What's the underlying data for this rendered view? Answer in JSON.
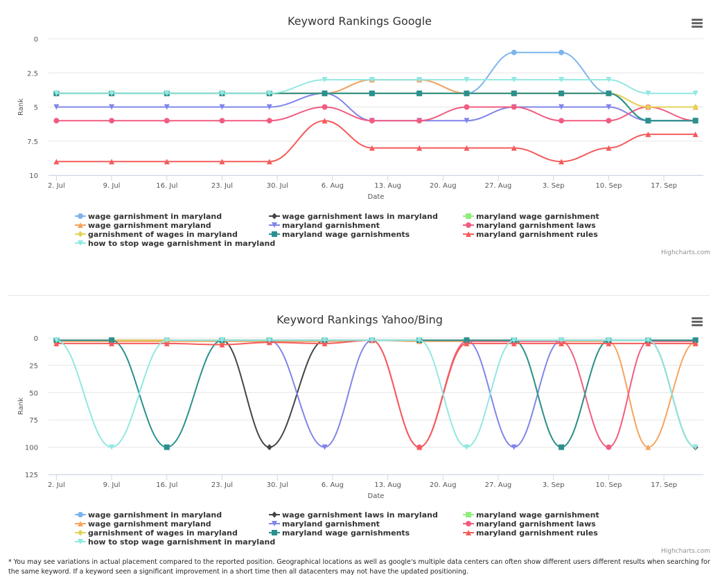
{
  "chart_data": [
    {
      "id": "google",
      "type": "line",
      "title": "Keyword Rankings Google",
      "xlabel": "Date",
      "ylabel": "Rank",
      "reversed_y": true,
      "ylim": [
        0,
        10
      ],
      "yticks": [
        0,
        2.5,
        5,
        7.5,
        10
      ],
      "yticklabels": [
        "0",
        "2.5",
        "5",
        "7.5",
        "10"
      ],
      "xticklabels": [
        "2. Jul",
        "9. Jul",
        "16. Jul",
        "23. Jul",
        "30. Jul",
        "6. Aug",
        "13. Aug",
        "20. Aug",
        "27. Aug",
        "3. Sep",
        "10. Sep",
        "17. Sep"
      ],
      "x": [
        "Jul 2",
        "Jul 9",
        "Jul 16",
        "Jul 23",
        "Jul 29",
        "Aug 5",
        "Aug 11",
        "Aug 17",
        "Aug 23",
        "Aug 29",
        "Sep 4",
        "Sep 10",
        "Sep 15",
        "Sep 21"
      ],
      "legend_position": "bottom",
      "grid": true,
      "credits": "Highcharts.com",
      "series": [
        {
          "name": "wage garnishment in maryland",
          "color": "#7cb5ec",
          "marker": "circle",
          "values": [
            4,
            4,
            4,
            4,
            4,
            4,
            3,
            3,
            4,
            1,
            1,
            4,
            6,
            6
          ]
        },
        {
          "name": "wage garnishment laws in maryland",
          "color": "#434348",
          "marker": "diamond",
          "values": [
            4,
            4,
            4,
            4,
            4,
            4,
            4,
            4,
            4,
            4,
            4,
            4,
            6,
            6
          ]
        },
        {
          "name": "maryland wage garnishment",
          "color": "#90ed7d",
          "marker": "square",
          "values": [
            4,
            4,
            4,
            4,
            4,
            4,
            4,
            4,
            4,
            4,
            4,
            4,
            6,
            6
          ]
        },
        {
          "name": "wage garnishment maryland",
          "color": "#f7a35c",
          "marker": "triangle",
          "values": [
            4,
            4,
            4,
            4,
            4,
            4,
            3,
            3,
            4,
            4,
            4,
            4,
            5,
            5
          ]
        },
        {
          "name": "maryland garnishment",
          "color": "#8085e9",
          "marker": "triangle-down",
          "values": [
            5,
            5,
            5,
            5,
            5,
            4,
            6,
            6,
            6,
            5,
            5,
            5,
            6,
            6
          ]
        },
        {
          "name": "maryland garnishment laws",
          "color": "#f15c80",
          "marker": "circle",
          "values": [
            6,
            6,
            6,
            6,
            6,
            5,
            6,
            6,
            5,
            5,
            6,
            6,
            5,
            6
          ]
        },
        {
          "name": "garnishment of wages in maryland",
          "color": "#e4d354",
          "marker": "diamond",
          "values": [
            4,
            4,
            4,
            4,
            4,
            4,
            4,
            4,
            4,
            4,
            4,
            4,
            5,
            5
          ]
        },
        {
          "name": "maryland wage garnishments",
          "color": "#2b908f",
          "marker": "square",
          "values": [
            4,
            4,
            4,
            4,
            4,
            4,
            4,
            4,
            4,
            4,
            4,
            4,
            6,
            6
          ]
        },
        {
          "name": "maryland garnishment rules",
          "color": "#f45b5b",
          "marker": "triangle",
          "values": [
            9,
            9,
            9,
            9,
            9,
            6,
            8,
            8,
            8,
            8,
            9,
            8,
            7,
            7
          ]
        },
        {
          "name": "how to stop wage garnishment in maryland",
          "color": "#91e8e1",
          "marker": "triangle-down",
          "values": [
            4,
            4,
            4,
            4,
            4,
            3,
            3,
            3,
            3,
            3,
            3,
            3,
            4,
            4
          ]
        }
      ]
    },
    {
      "id": "yahoo",
      "type": "line",
      "title": "Keyword Rankings Yahoo/Bing",
      "xlabel": "Date",
      "ylabel": "Rank",
      "reversed_y": true,
      "ylim": [
        0,
        125
      ],
      "yticks": [
        0,
        25,
        50,
        75,
        100,
        125
      ],
      "yticklabels": [
        "0",
        "25",
        "50",
        "75",
        "100",
        "125"
      ],
      "xticklabels": [
        "2. Jul",
        "9. Jul",
        "16. Jul",
        "23. Jul",
        "30. Jul",
        "6. Aug",
        "13. Aug",
        "20. Aug",
        "27. Aug",
        "3. Sep",
        "10. Sep",
        "17. Sep"
      ],
      "x": [
        "Jul 2",
        "Jul 9",
        "Jul 16",
        "Jul 23",
        "Jul 29",
        "Aug 5",
        "Aug 11",
        "Aug 17",
        "Aug 23",
        "Aug 29",
        "Sep 4",
        "Sep 10",
        "Sep 15",
        "Sep 21"
      ],
      "legend_position": "bottom",
      "grid": true,
      "credits": "Highcharts.com",
      "series": [
        {
          "name": "wage garnishment in maryland",
          "color": "#7cb5ec",
          "marker": "circle",
          "values": [
            2,
            2,
            2,
            2,
            2,
            2,
            2,
            2,
            2,
            3,
            2,
            2,
            2,
            2
          ]
        },
        {
          "name": "wage garnishment laws in maryland",
          "color": "#434348",
          "marker": "diamond",
          "values": [
            2,
            2,
            2,
            2,
            100,
            2,
            2,
            2,
            2,
            2,
            2,
            2,
            2,
            100
          ]
        },
        {
          "name": "maryland wage garnishment",
          "color": "#90ed7d",
          "marker": "square",
          "values": [
            2,
            2,
            2,
            2,
            2,
            2,
            2,
            2,
            2,
            2,
            2,
            2,
            2,
            2
          ]
        },
        {
          "name": "wage garnishment maryland",
          "color": "#f7a35c",
          "marker": "triangle",
          "values": [
            3,
            3,
            3,
            3,
            3,
            3,
            2,
            3,
            3,
            3,
            3,
            3,
            100,
            4
          ]
        },
        {
          "name": "maryland garnishment",
          "color": "#8085e9",
          "marker": "triangle-down",
          "values": [
            2,
            2,
            2,
            2,
            2,
            100,
            2,
            2,
            2,
            100,
            2,
            2,
            2,
            2
          ]
        },
        {
          "name": "maryland garnishment laws",
          "color": "#f15c80",
          "marker": "circle",
          "values": [
            2,
            2,
            2,
            2,
            2,
            2,
            2,
            100,
            3,
            3,
            3,
            100,
            3,
            3
          ]
        },
        {
          "name": "garnishment of wages in maryland",
          "color": "#e4d354",
          "marker": "diamond",
          "values": [
            2,
            2,
            2,
            2,
            2,
            2,
            2,
            2,
            2,
            2,
            100,
            2,
            2,
            2
          ]
        },
        {
          "name": "maryland wage garnishments",
          "color": "#2b908f",
          "marker": "square",
          "values": [
            2,
            2,
            100,
            2,
            2,
            2,
            2,
            2,
            2,
            2,
            100,
            2,
            2,
            2
          ]
        },
        {
          "name": "maryland garnishment rules",
          "color": "#f45b5b",
          "marker": "triangle",
          "values": [
            5,
            5,
            5,
            6,
            4,
            5,
            2,
            100,
            5,
            5,
            5,
            5,
            5,
            5
          ]
        },
        {
          "name": "how to stop wage garnishment in maryland",
          "color": "#91e8e1",
          "marker": "triangle-down",
          "values": [
            2,
            100,
            2,
            2,
            2,
            2,
            2,
            2,
            100,
            2,
            2,
            2,
            2,
            100
          ]
        }
      ]
    }
  ],
  "footnote": "* You may see variations in actual placement compared to the reported position. Geographical locations as well as google's multiple data centers can often show different users different results when searching for the same keyword. If a keyword seen a significant improvement in a short time then all datacenters may not have the updated positioning."
}
